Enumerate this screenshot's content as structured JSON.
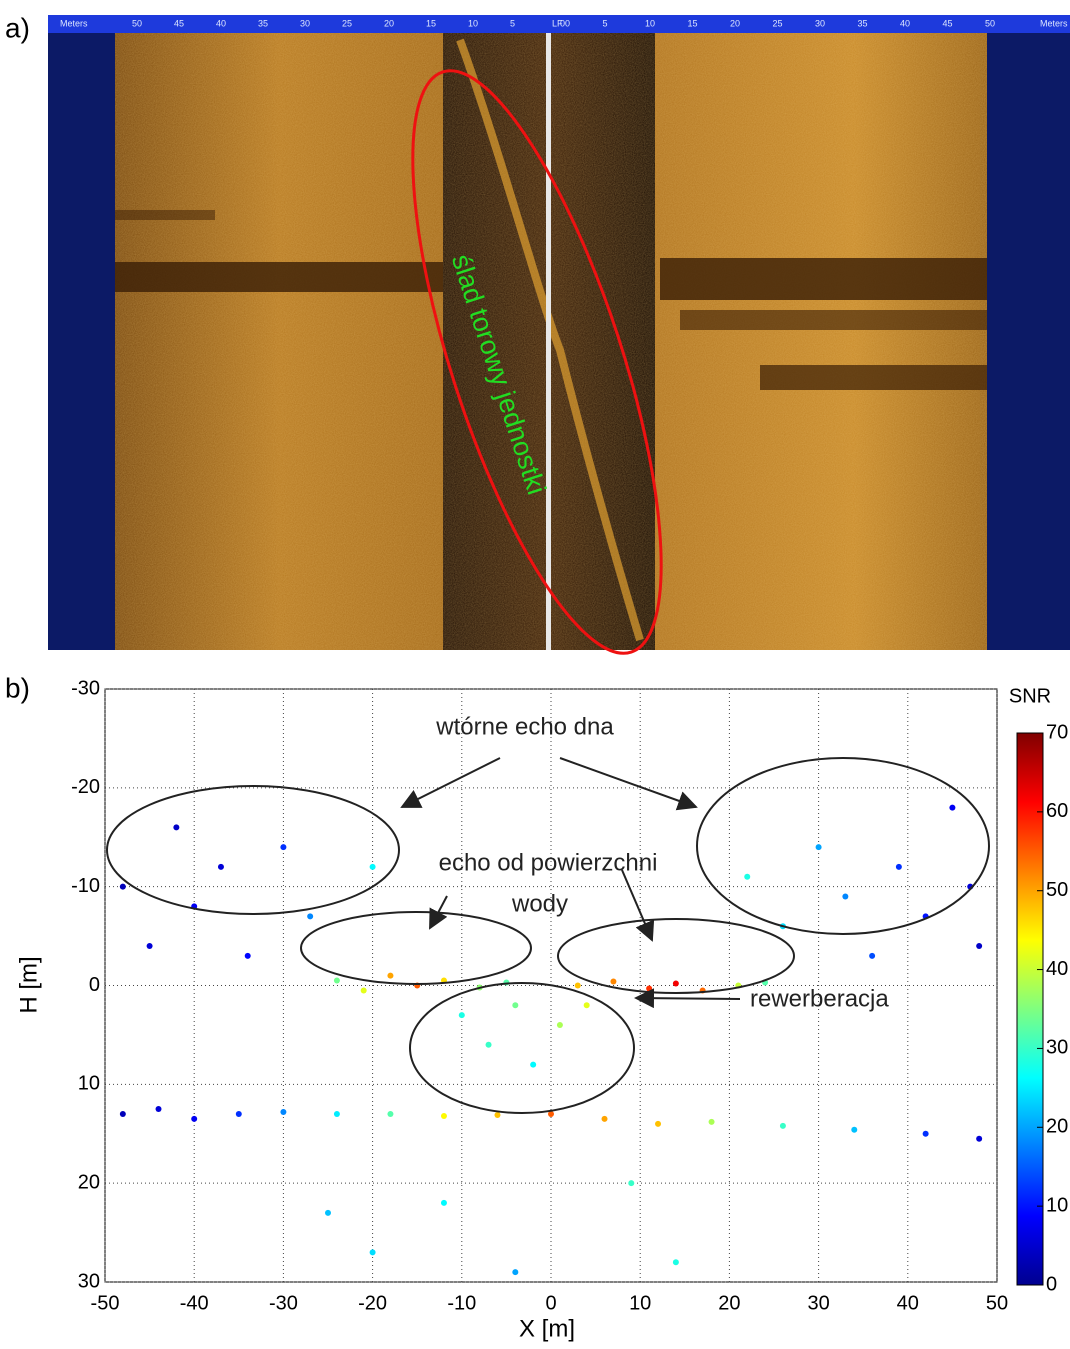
{
  "panel_a": {
    "label": "a)",
    "annotation": "ślad torowy jednostki",
    "scale_left": [
      "Meters",
      "50",
      "45",
      "40",
      "35",
      "30",
      "25",
      "20",
      "15",
      "10",
      "5",
      "LF"
    ],
    "scale_right": [
      "00",
      "5",
      "10",
      "15",
      "20",
      "25",
      "30",
      "35",
      "40",
      "45",
      "50",
      "Meters"
    ]
  },
  "chart_data": {
    "type": "scatter",
    "label": "b)",
    "xlabel": "X [m]",
    "ylabel": "H [m]",
    "xlim": [
      -50,
      50
    ],
    "xticks": [
      -50,
      -40,
      -30,
      -20,
      -10,
      0,
      10,
      20,
      30,
      40,
      50
    ],
    "ylim": [
      -30,
      30
    ],
    "yticks": [
      -30,
      -20,
      -10,
      0,
      10,
      20,
      30
    ],
    "y_reversed": true,
    "grid": true,
    "colorbar": {
      "title": "SNR",
      "lim": [
        0,
        70
      ],
      "ticks": [
        0,
        10,
        20,
        30,
        40,
        50,
        60,
        70
      ],
      "colormap": "jet"
    },
    "annotations": {
      "secondary": "wtórne echo dna",
      "surface": [
        "echo od powierzchni",
        "wody"
      ],
      "reverb": "rewerberacja"
    },
    "x": [
      -48,
      -44,
      -40,
      -35,
      -30,
      -24,
      -18,
      -12,
      -6,
      0,
      6,
      12,
      18,
      26,
      34,
      42,
      48,
      -24,
      -21,
      -18,
      -15,
      -12,
      -8,
      -5,
      3,
      7,
      11,
      14,
      17,
      21,
      24,
      -48,
      -45,
      -42,
      -40,
      -37,
      -34,
      -30,
      -27,
      -20,
      22,
      26,
      30,
      33,
      36,
      39,
      42,
      45,
      47,
      48,
      -10,
      -7,
      -4,
      -2,
      1,
      4,
      -25,
      -20,
      -12,
      -4,
      9,
      14
    ],
    "y": [
      13,
      12.5,
      13.5,
      13,
      12.8,
      13,
      13,
      13.2,
      13.1,
      13,
      13.5,
      14,
      13.8,
      14.2,
      14.6,
      15,
      15.5,
      -0.5,
      0.5,
      -1,
      0,
      -0.5,
      0.2,
      -0.3,
      0,
      -0.4,
      0.3,
      -0.2,
      0.5,
      0,
      -0.3,
      -10,
      -4,
      -16,
      -8,
      -12,
      -3,
      -14,
      -7,
      -12,
      -11,
      -6,
      -14,
      -9,
      -3,
      -12,
      -7,
      -18,
      -10,
      -4,
      3,
      6,
      2,
      8,
      4,
      2,
      23,
      27,
      22,
      29,
      20,
      28
    ],
    "snr": [
      4,
      6,
      8,
      12,
      18,
      25,
      32,
      44,
      48,
      55,
      50,
      48,
      38,
      30,
      22,
      12,
      6,
      34,
      42,
      50,
      55,
      46,
      36,
      32,
      48,
      52,
      58,
      62,
      54,
      40,
      32,
      4,
      6,
      5,
      8,
      6,
      9,
      12,
      18,
      26,
      28,
      24,
      20,
      18,
      14,
      12,
      10,
      8,
      6,
      5,
      28,
      30,
      34,
      26,
      38,
      42,
      22,
      24,
      26,
      20,
      30,
      28
    ]
  }
}
